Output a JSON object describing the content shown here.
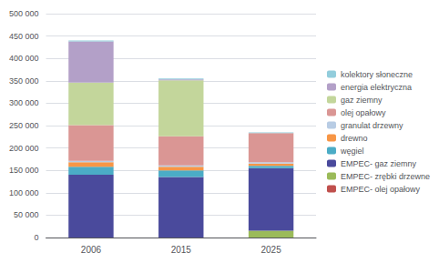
{
  "chart_data": {
    "type": "bar",
    "stacked": true,
    "grid": true,
    "legend": "right",
    "categories": [
      "2006",
      "2015",
      "2025"
    ],
    "series": [
      {
        "name": "EMPEC- olej opałowy",
        "color": "#c0504d",
        "values": [
          0,
          0,
          0
        ]
      },
      {
        "name": "EMPEC- zrębki drzewne",
        "color": "#9bbb59",
        "values": [
          0,
          0,
          15000
        ]
      },
      {
        "name": "EMPEC- gaz ziemny",
        "color": "#4a4a9c",
        "values": [
          140000,
          135000,
          140000
        ]
      },
      {
        "name": "węgiel",
        "color": "#4bacc6",
        "values": [
          18000,
          15000,
          5000
        ]
      },
      {
        "name": "drewno",
        "color": "#f79646",
        "values": [
          10000,
          8000,
          5000
        ]
      },
      {
        "name": "granulat drzewny",
        "color": "#b8cce4",
        "values": [
          3000,
          3000,
          3000
        ]
      },
      {
        "name": "olej opałowy",
        "color": "#da9694",
        "values": [
          80000,
          65000,
          65000
        ]
      },
      {
        "name": "gaz ziemny",
        "color": "#c3d69b",
        "values": [
          95000,
          125000,
          0
        ]
      },
      {
        "name": "energia elektryczna",
        "color": "#b3a0c8",
        "values": [
          92000,
          2000,
          0
        ]
      },
      {
        "name": "kolektory słoneczne",
        "color": "#92cddc",
        "values": [
          2000,
          2000,
          2000
        ]
      }
    ],
    "ylim": [
      0,
      500000
    ],
    "yticks": [
      0,
      {
        "value": 50000,
        "label": "50 000"
      },
      {
        "value": 100000,
        "label": "100 000"
      },
      {
        "value": 150000,
        "label": "150 000"
      },
      {
        "value": 200000,
        "label": "200 000"
      },
      {
        "value": 250000,
        "label": "250 000"
      },
      {
        "value": 300000,
        "label": "300 000"
      },
      {
        "value": 350000,
        "label": "350 000"
      },
      {
        "value": 400000,
        "label": "400 000"
      },
      {
        "value": 450000,
        "label": "450 000"
      },
      {
        "value": 500000,
        "label": "500 000"
      }
    ]
  }
}
